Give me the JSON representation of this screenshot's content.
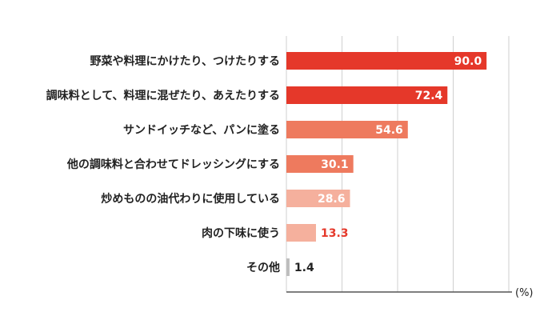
{
  "chart_data": {
    "type": "bar",
    "orientation": "horizontal",
    "categories": [
      "野菜や料理にかけたり、つけたりする",
      "調味料として、料理に混ぜたり、あえたりする",
      "サンドイッチなど、パンに塗る",
      "他の調味料と合わせてドレッシングにする",
      "炒めものの油代わりに使用している",
      "肉の下味に使う",
      "その他"
    ],
    "values": [
      90.0,
      72.4,
      54.6,
      30.1,
      28.6,
      13.3,
      1.4
    ],
    "value_labels": [
      "90.0",
      "72.4",
      "54.6",
      "30.1",
      "28.6",
      "13.3",
      "1.4"
    ],
    "bar_colors": [
      "#e5382a",
      "#e5382a",
      "#ee7a5e",
      "#ee7a5e",
      "#f5b09d",
      "#f5b09d",
      "#bdbdbd"
    ],
    "label_colors": [
      "#ffffff",
      "#ffffff",
      "#ffffff",
      "#ffffff",
      "#ffffff",
      "#e5382a",
      "#222222"
    ],
    "label_inside": [
      true,
      true,
      true,
      true,
      true,
      false,
      false
    ],
    "unit": "(%)",
    "xlim": [
      0,
      100
    ],
    "gridlines": [
      0,
      25,
      50,
      75,
      100
    ],
    "grid": true,
    "legend": "none"
  }
}
